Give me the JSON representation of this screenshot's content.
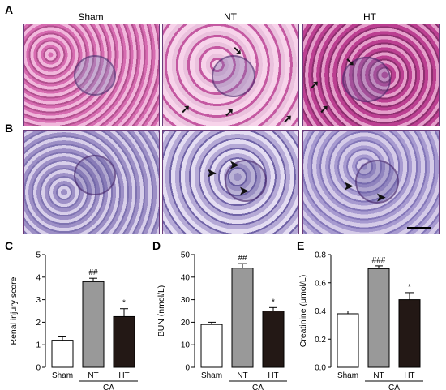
{
  "panel_letters": [
    "A",
    "B",
    "C",
    "D",
    "E"
  ],
  "columns": [
    "Sham",
    "NT",
    "HT"
  ],
  "charts": [
    {
      "type": "bar",
      "ylabel": "Renal injury score",
      "ylim": [
        0,
        5
      ],
      "yticks": [
        "0",
        "1",
        "2",
        "3",
        "4",
        "5"
      ],
      "categories": [
        "Sham",
        "NT",
        "HT"
      ],
      "values": [
        1.2,
        3.8,
        2.25
      ],
      "errors": [
        0.15,
        0.15,
        0.35
      ],
      "sig": [
        "",
        "##",
        "*"
      ],
      "group_label": "CA",
      "colors": [
        "#ffffff",
        "#999999",
        "#231815"
      ]
    },
    {
      "type": "bar",
      "ylabel": "BUN (nmol/L)",
      "ylim": [
        0,
        50
      ],
      "yticks": [
        "0",
        "10",
        "20",
        "30",
        "40",
        "50"
      ],
      "categories": [
        "Sham",
        "NT",
        "HT"
      ],
      "values": [
        19,
        44,
        25
      ],
      "errors": [
        1,
        2,
        1.5
      ],
      "sig": [
        "",
        "##",
        "*"
      ],
      "group_label": "CA",
      "colors": [
        "#ffffff",
        "#999999",
        "#231815"
      ]
    },
    {
      "type": "bar",
      "ylabel": "Creatinine (μmol/L)",
      "ylim": [
        0,
        0.8
      ],
      "yticks": [
        "0.0",
        "0.2",
        "0.4",
        "0.6",
        "0.8"
      ],
      "categories": [
        "Sham",
        "NT",
        "HT"
      ],
      "values": [
        0.38,
        0.7,
        0.48
      ],
      "errors": [
        0.02,
        0.02,
        0.05
      ],
      "sig": [
        "",
        "###",
        "*"
      ],
      "group_label": "CA",
      "colors": [
        "#ffffff",
        "#999999",
        "#231815"
      ]
    }
  ]
}
